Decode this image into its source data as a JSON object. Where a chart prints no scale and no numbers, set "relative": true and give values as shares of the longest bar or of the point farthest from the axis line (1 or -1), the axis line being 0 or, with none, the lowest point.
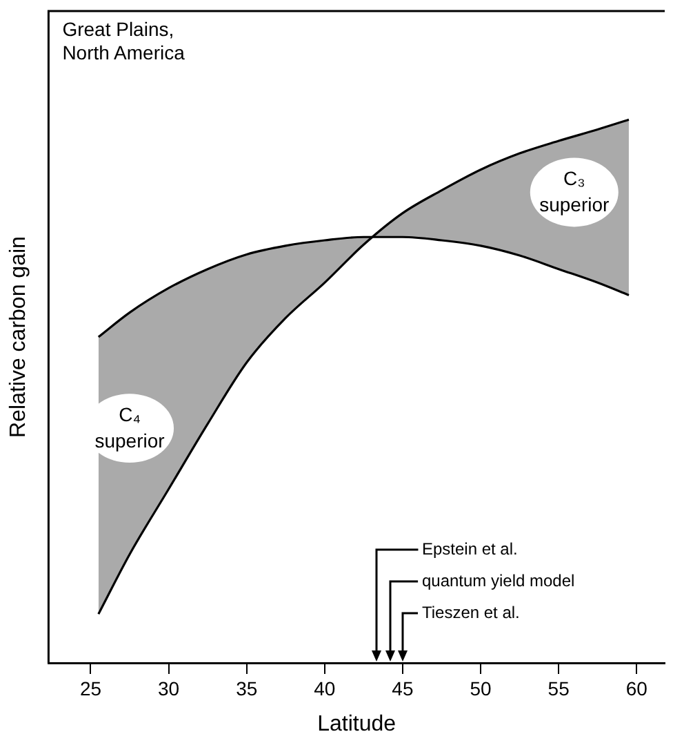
{
  "chart_data": {
    "type": "line",
    "relative": true,
    "xlabel": "Latitude",
    "ylabel": "Relative carbon gain",
    "xlim": [
      22.3,
      61.8
    ],
    "xticks": [
      25,
      30,
      35,
      40,
      45,
      50,
      55,
      60
    ],
    "marker": "none",
    "grid": false,
    "legend": false,
    "series": [
      {
        "color": "#000000",
        "x": [
          25.5,
          27.5,
          30,
          32.5,
          35,
          37.5,
          40,
          42.5,
          45,
          47.5,
          50,
          52.5,
          55,
          57.5,
          59.5
        ],
        "values": [
          0.6,
          0.645,
          0.69,
          0.725,
          0.752,
          0.768,
          0.778,
          0.784,
          0.784,
          0.778,
          0.768,
          0.75,
          0.725,
          0.7,
          0.677
        ]
      },
      {
        "color": "#000000",
        "x": [
          25.5,
          27.5,
          30,
          32.5,
          35,
          37.5,
          40,
          42.5,
          45,
          47.5,
          50,
          52.5,
          55,
          57.5,
          59.5
        ],
        "values": [
          0.09,
          0.2,
          0.32,
          0.44,
          0.553,
          0.635,
          0.7,
          0.77,
          0.828,
          0.87,
          0.908,
          0.938,
          0.961,
          0.982,
          1
        ],
        "lower": [
          0.6,
          0.645,
          0.69,
          0.725,
          0.752,
          0.768,
          0.778,
          0.784,
          0.784,
          0.778,
          0.768,
          0.75,
          0.725,
          0.7,
          0.677
        ],
        "upper": [
          0.09,
          0.2,
          0.32,
          0.44,
          0.553,
          0.635,
          0.7,
          0.77,
          0.828,
          0.87,
          0.908,
          0.938,
          0.961,
          0.982,
          1
        ]
      }
    ],
    "ref_lines": [
      {
        "axis": "x",
        "value": 43.3,
        "label": "Epstein et al."
      },
      {
        "axis": "x",
        "value": 44.2,
        "label": "quantum yield model"
      },
      {
        "axis": "x",
        "value": 45,
        "label": "Tieszen et al."
      }
    ],
    "annotations": [
      "Great Plains, North America",
      "C₄ superior",
      "C₃ superior"
    ]
  }
}
